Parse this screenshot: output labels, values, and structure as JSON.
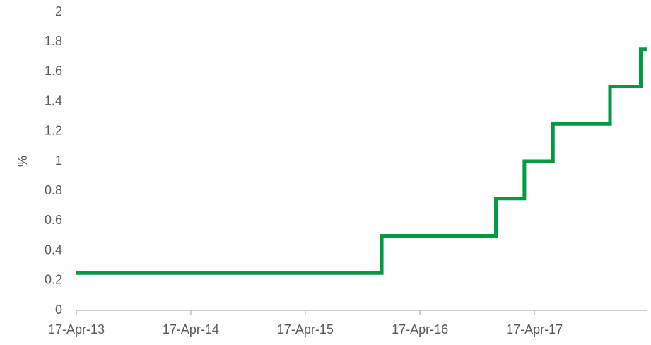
{
  "chart_data": {
    "type": "line",
    "step": "post",
    "ylabel": "%",
    "x": [
      "2013-04-17",
      "2015-12-17",
      "2016-12-15",
      "2017-03-16",
      "2017-06-15",
      "2017-12-14",
      "2018-03-22",
      "2018-04-10"
    ],
    "series": [
      {
        "color": "#009a44",
        "values": [
          0.25,
          0.5,
          0.75,
          1,
          1.25,
          1.5,
          1.75,
          1.75
        ]
      }
    ],
    "xlim": [
      "2013-04-17",
      "2018-04-17"
    ],
    "xticks": [
      {
        "value": "2013-04-17",
        "label": "17-Apr-13"
      },
      {
        "value": "2014-04-17",
        "label": "17-Apr-14"
      },
      {
        "value": "2015-04-17",
        "label": "17-Apr-15"
      },
      {
        "value": "2016-04-17",
        "label": "17-Apr-16"
      },
      {
        "value": "2017-04-17",
        "label": "17-Apr-17"
      }
    ],
    "ylim": [
      0,
      2
    ],
    "yticks": [
      0,
      0.2,
      0.4,
      0.6,
      0.8,
      1,
      1.2,
      1.4,
      1.6,
      1.8,
      2
    ],
    "grid": false
  }
}
